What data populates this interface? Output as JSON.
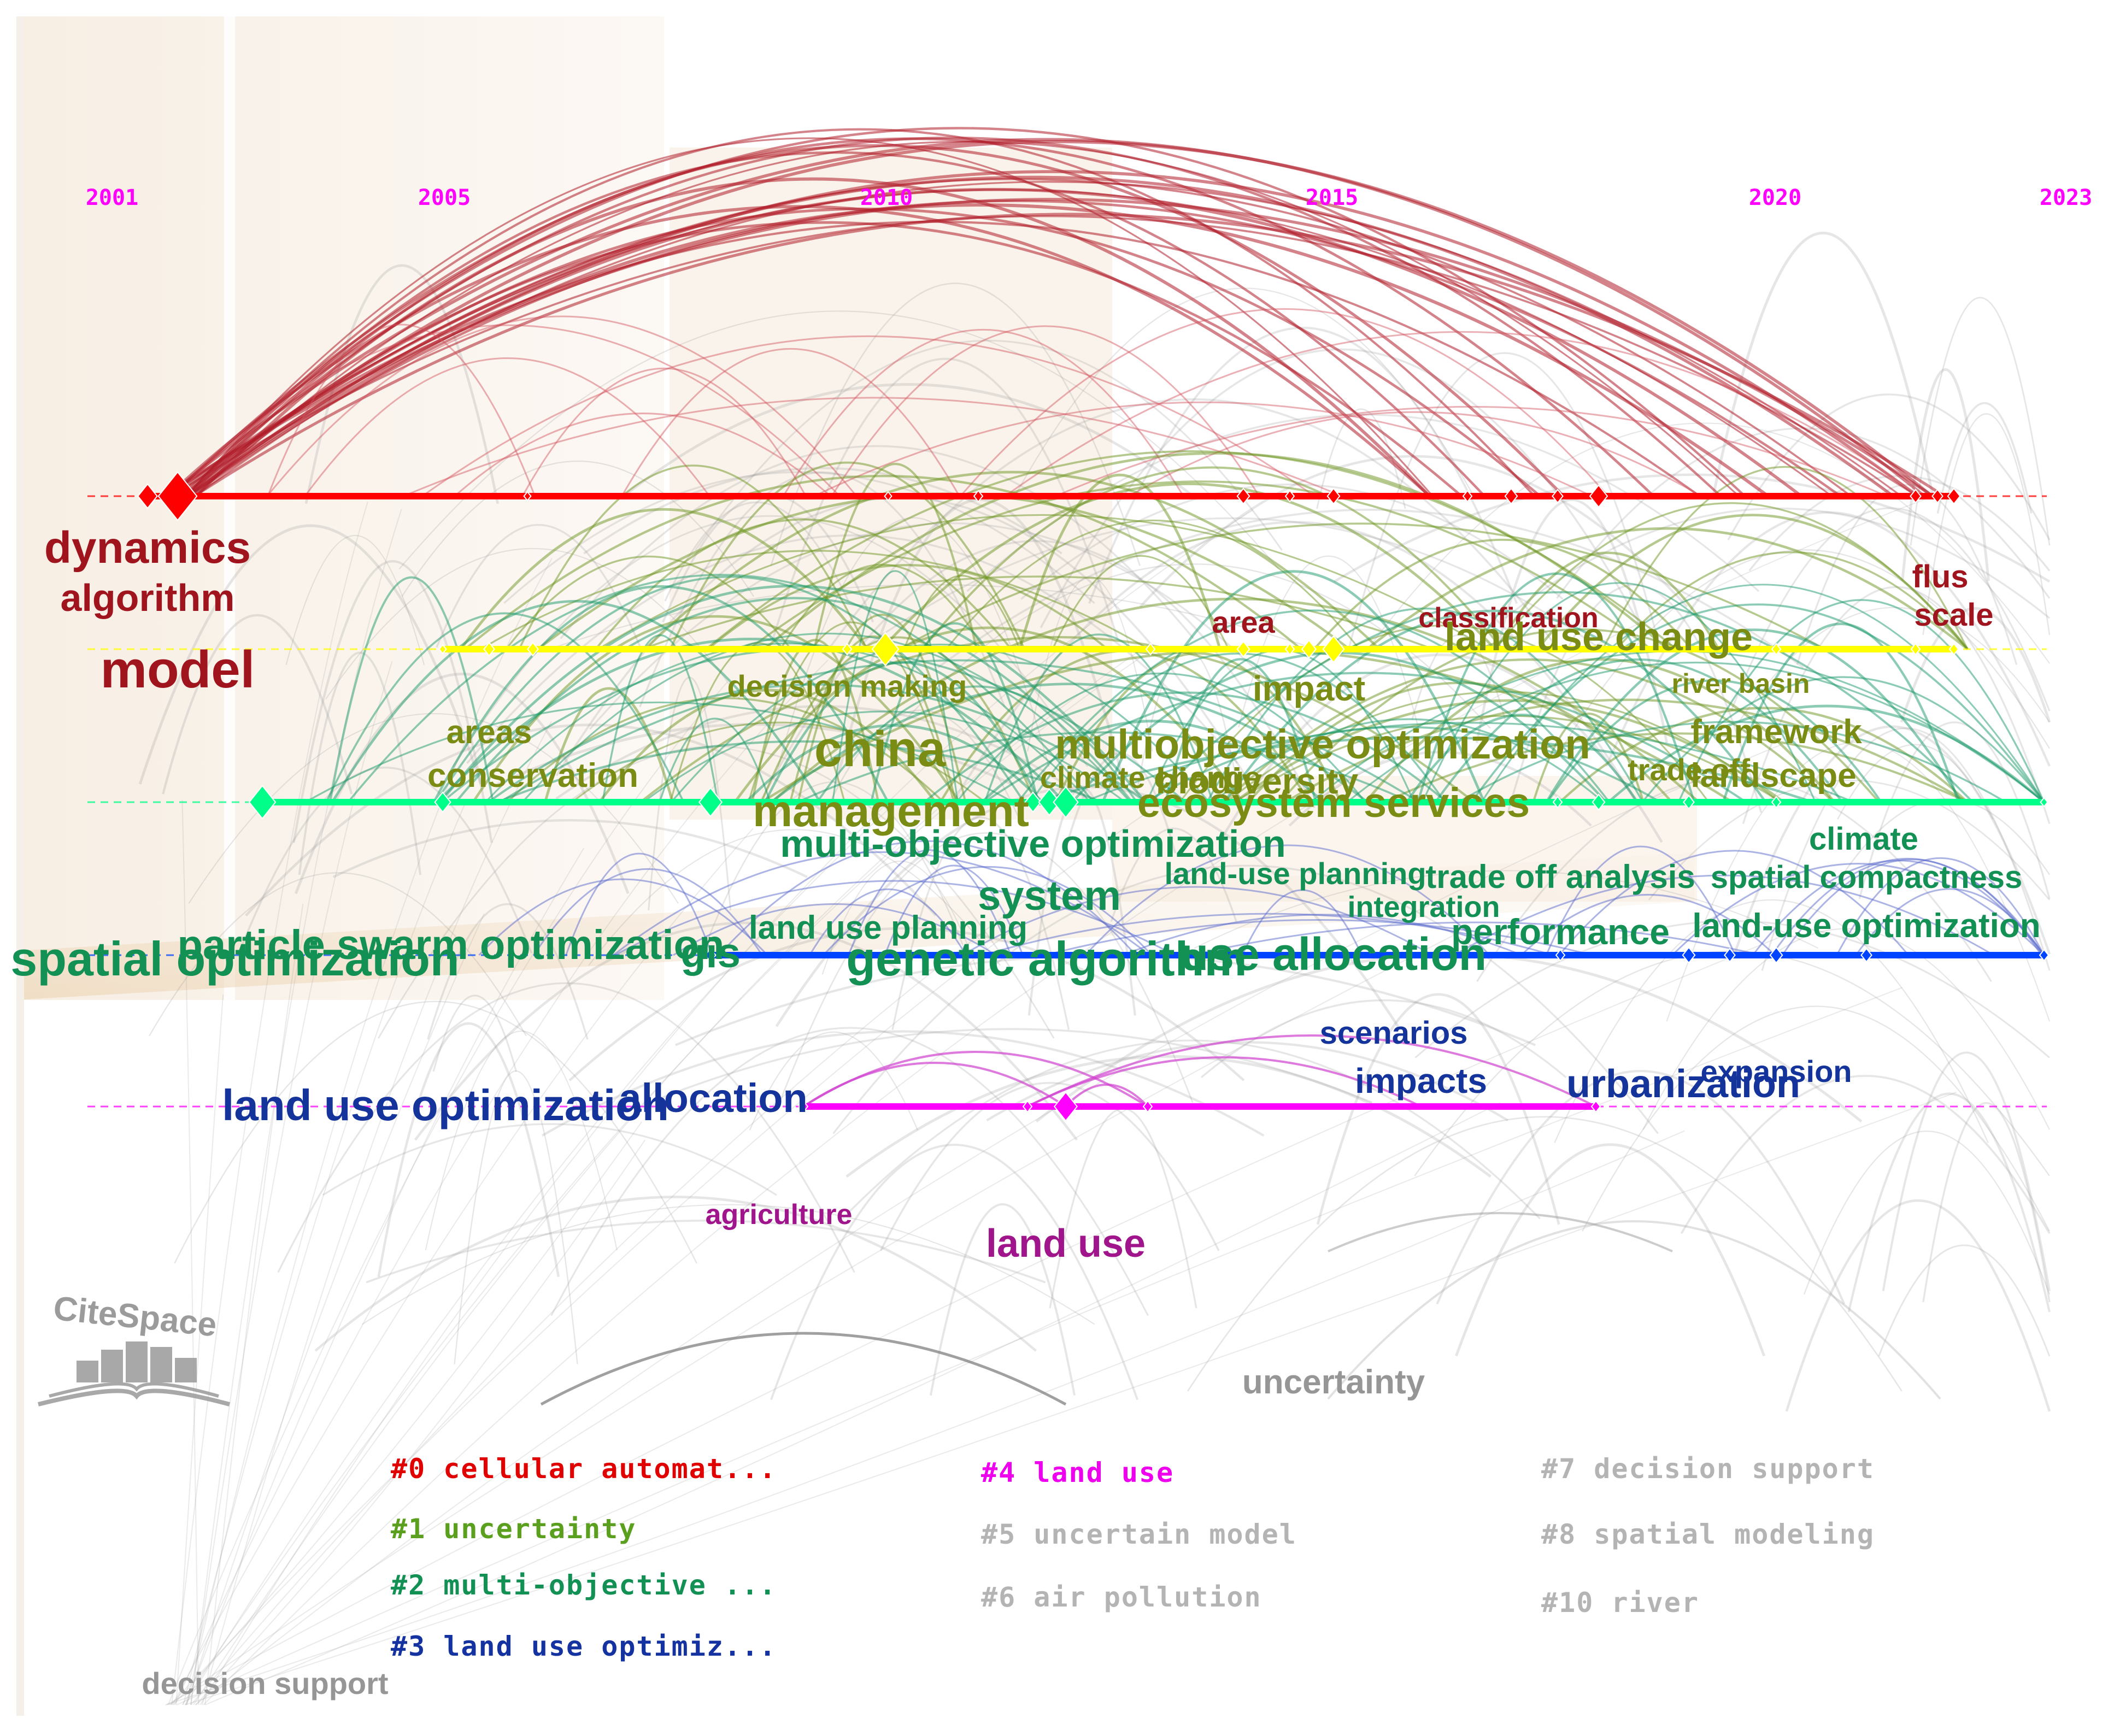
{
  "timeline": {
    "years": [
      "2001",
      "2005",
      "2010",
      "2015",
      "2020",
      "2023"
    ],
    "year_color": "#ff00ff"
  },
  "watermark": {
    "brand": "CiteSpace"
  },
  "clusters": [
    {
      "id": "0",
      "color": "#ff0000",
      "label_color": "#a0141e"
    },
    {
      "id": "1",
      "color": "#ffff00",
      "label_color": "#7a8c14"
    },
    {
      "id": "2",
      "color": "#00ff88",
      "label_color": "#139155"
    },
    {
      "id": "3",
      "color": "#0044ff",
      "label_color": "#14349c"
    },
    {
      "id": "4",
      "color": "#ff00ff",
      "label_color": "#a0148c"
    }
  ],
  "keywords": [
    {
      "text": "dynamics",
      "cluster": "0"
    },
    {
      "text": "algorithm",
      "cluster": "0"
    },
    {
      "text": "model",
      "cluster": "0"
    },
    {
      "text": "flus",
      "cluster": "0"
    },
    {
      "text": "scale",
      "cluster": "0"
    },
    {
      "text": "classification",
      "cluster": "0"
    },
    {
      "text": "area",
      "cluster": "0"
    },
    {
      "text": "land use change",
      "cluster": "1"
    },
    {
      "text": "decision making",
      "cluster": "1"
    },
    {
      "text": "impact",
      "cluster": "1"
    },
    {
      "text": "river basin",
      "cluster": "1"
    },
    {
      "text": "framework",
      "cluster": "1"
    },
    {
      "text": "areas",
      "cluster": "1"
    },
    {
      "text": "conservation",
      "cluster": "1"
    },
    {
      "text": "china",
      "cluster": "1"
    },
    {
      "text": "multiobjective optimization",
      "cluster": "1"
    },
    {
      "text": "climate change",
      "cluster": "1"
    },
    {
      "text": "biodiversity",
      "cluster": "1"
    },
    {
      "text": "trade off",
      "cluster": "1"
    },
    {
      "text": "landscape",
      "cluster": "1"
    },
    {
      "text": "management",
      "cluster": "1"
    },
    {
      "text": "ecosystem services",
      "cluster": "1"
    },
    {
      "text": "multi-objective optimization",
      "cluster": "2"
    },
    {
      "text": "climate",
      "cluster": "2"
    },
    {
      "text": "land-use planning",
      "cluster": "2"
    },
    {
      "text": "trade off analysis",
      "cluster": "2"
    },
    {
      "text": "spatial compactness",
      "cluster": "2"
    },
    {
      "text": "system",
      "cluster": "2"
    },
    {
      "text": "integration",
      "cluster": "2"
    },
    {
      "text": "particle swarm optimization",
      "cluster": "2"
    },
    {
      "text": "spatial optimization",
      "cluster": "2"
    },
    {
      "text": "gis",
      "cluster": "2"
    },
    {
      "text": "land use planning",
      "cluster": "2"
    },
    {
      "text": "performance",
      "cluster": "2"
    },
    {
      "text": "land-use optimization",
      "cluster": "2"
    },
    {
      "text": "genetic algorithm",
      "cluster": "2"
    },
    {
      "text": "use allocation",
      "cluster": "2"
    },
    {
      "text": "scenarios",
      "cluster": "3"
    },
    {
      "text": "impacts",
      "cluster": "3"
    },
    {
      "text": "expansion",
      "cluster": "3"
    },
    {
      "text": "urbanization",
      "cluster": "3"
    },
    {
      "text": "land use optimization",
      "cluster": "3"
    },
    {
      "text": "allocation",
      "cluster": "3"
    },
    {
      "text": "agriculture",
      "cluster": "4"
    },
    {
      "text": "land use",
      "cluster": "4"
    },
    {
      "text": "uncertainty",
      "cluster": "grey"
    },
    {
      "text": "decision support",
      "cluster": "grey"
    }
  ],
  "legend": [
    {
      "text": "#0 cellular automat...",
      "color": "#e00000"
    },
    {
      "text": "#1 uncertainty",
      "color": "#5aa01e"
    },
    {
      "text": "#2 multi-objective ...",
      "color": "#139155"
    },
    {
      "text": "#3 land use optimiz...",
      "color": "#1432a0"
    },
    {
      "text": "#4 land use",
      "color": "#ee00ee"
    },
    {
      "text": "#5 uncertain model",
      "color": "#b4b4b4"
    },
    {
      "text": "#6 air pollution",
      "color": "#b4b4b4"
    },
    {
      "text": "#7 decision support",
      "color": "#b4b4b4"
    },
    {
      "text": "#8 spatial modeling",
      "color": "#b4b4b4"
    },
    {
      "text": "#10 river",
      "color": "#b4b4b4"
    }
  ]
}
